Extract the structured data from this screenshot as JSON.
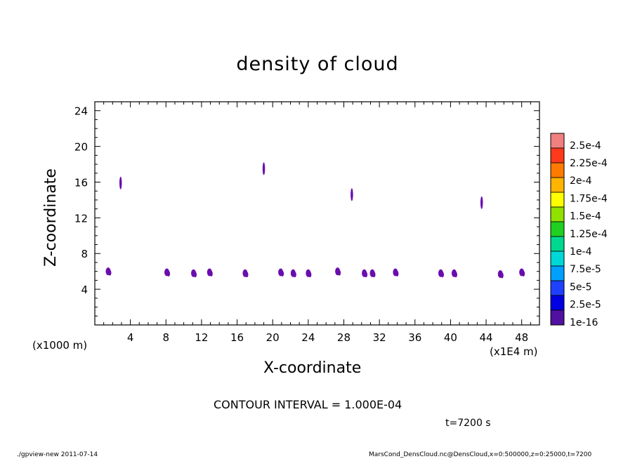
{
  "chart_data": {
    "type": "contour",
    "title": "density of cloud",
    "xlabel": "X-coordinate",
    "ylabel": "Z-coordinate",
    "x_unit_left": "(x1000 m)",
    "x_unit_right": "(x1E4 m)",
    "xlim": [
      0,
      50
    ],
    "ylim": [
      0,
      25
    ],
    "x_ticks": [
      4,
      8,
      12,
      16,
      20,
      24,
      28,
      32,
      36,
      40,
      44,
      48
    ],
    "y_ticks": [
      4,
      8,
      12,
      16,
      20,
      24
    ],
    "contour_interval_text": "CONTOUR INTERVAL = 1.000E-04",
    "time_text": "t=7200 s",
    "colorbar": {
      "labels": [
        "2.5e-4",
        "2.25e-4",
        "2e-4",
        "1.75e-4",
        "1.5e-4",
        "1.25e-4",
        "1e-4",
        "7.5e-5",
        "5e-5",
        "2.5e-5",
        "1e-16"
      ],
      "colors": [
        "#f08080",
        "#ff3a1a",
        "#ff7a00",
        "#ffb400",
        "#ffff00",
        "#90e000",
        "#20d020",
        "#00d890",
        "#00d8d8",
        "#00a0ff",
        "#2040ff",
        "#0000e0",
        "#5010a0"
      ]
    },
    "blobs": [
      {
        "x": 1.5,
        "z": 6.0
      },
      {
        "x": 2.9,
        "z": 15.9
      },
      {
        "x": 8.1,
        "z": 5.9
      },
      {
        "x": 11.1,
        "z": 5.8
      },
      {
        "x": 12.9,
        "z": 5.9
      },
      {
        "x": 16.9,
        "z": 5.8
      },
      {
        "x": 19.0,
        "z": 17.5
      },
      {
        "x": 20.9,
        "z": 5.9
      },
      {
        "x": 22.3,
        "z": 5.8
      },
      {
        "x": 24.0,
        "z": 5.8
      },
      {
        "x": 27.3,
        "z": 6.0
      },
      {
        "x": 28.9,
        "z": 14.6
      },
      {
        "x": 30.3,
        "z": 5.8
      },
      {
        "x": 31.2,
        "z": 5.8
      },
      {
        "x": 33.8,
        "z": 5.9
      },
      {
        "x": 38.9,
        "z": 5.8
      },
      {
        "x": 40.4,
        "z": 5.8
      },
      {
        "x": 43.5,
        "z": 13.7
      },
      {
        "x": 45.6,
        "z": 5.7
      },
      {
        "x": 48.0,
        "z": 5.9
      }
    ],
    "blob_color": "#6a0dad"
  },
  "footer": {
    "left": "./gpview-new   2011-07-14",
    "right": "MarsCond_DensCloud.nc@DensCloud,x=0:500000,z=0:25000,t=7200"
  }
}
